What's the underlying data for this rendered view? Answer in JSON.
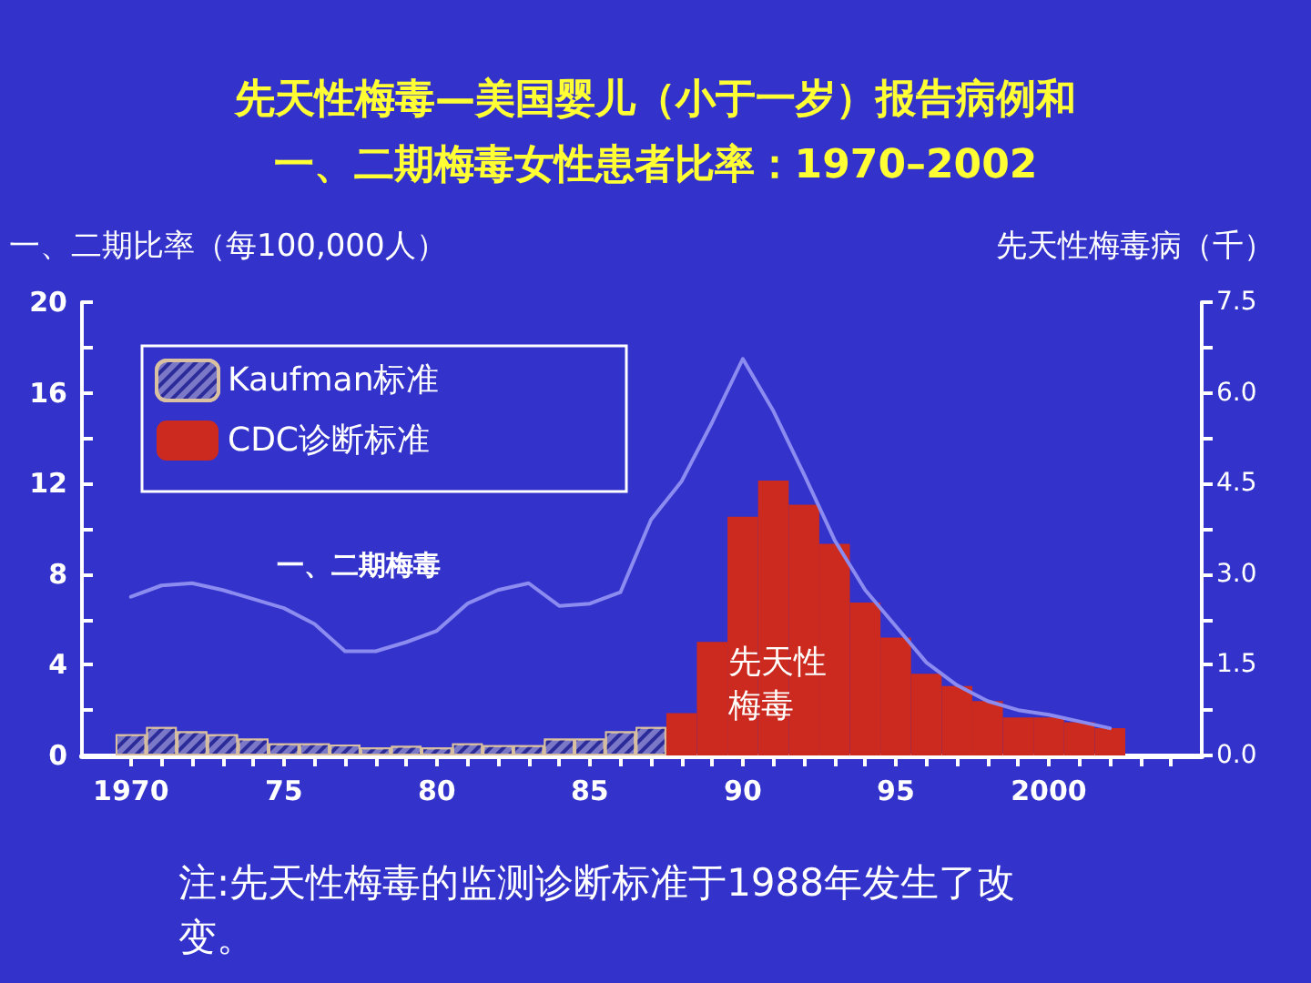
{
  "chart_data": {
    "type": "bar",
    "title": "先天性梅毒—美国婴儿（小于一岁）报告病例和一、二期梅毒女性患者比率：1970–2002",
    "ylabel": "一、二期比率（每100,000人）",
    "y2label": "先天性梅毒病（千）",
    "annotations": [
      "先天性梅毒",
      "注:先天性梅毒的监测诊断标准于1988年发生了改变。"
    ],
    "xlim": [
      1968.4,
      2005
    ],
    "xticks": [
      {
        "value": 1970,
        "label": "1970"
      },
      {
        "value": 1971,
        "label": null
      },
      {
        "value": 1972,
        "label": null
      },
      {
        "value": 1973,
        "label": null
      },
      {
        "value": 1974,
        "label": null
      },
      {
        "value": 1975,
        "label": "75"
      },
      {
        "value": 1976,
        "label": null
      },
      {
        "value": 1977,
        "label": null
      },
      {
        "value": 1978,
        "label": null
      },
      {
        "value": 1979,
        "label": null
      },
      {
        "value": 1980,
        "label": "80"
      },
      {
        "value": 1981,
        "label": null
      },
      {
        "value": 1982,
        "label": null
      },
      {
        "value": 1983,
        "label": null
      },
      {
        "value": 1984,
        "label": null
      },
      {
        "value": 1985,
        "label": "85"
      },
      {
        "value": 1986,
        "label": null
      },
      {
        "value": 1987,
        "label": null
      },
      {
        "value": 1988,
        "label": null
      },
      {
        "value": 1989,
        "label": null
      },
      {
        "value": 1990,
        "label": "90"
      },
      {
        "value": 1991,
        "label": null
      },
      {
        "value": 1992,
        "label": null
      },
      {
        "value": 1993,
        "label": null
      },
      {
        "value": 1994,
        "label": null
      },
      {
        "value": 1995,
        "label": "95"
      },
      {
        "value": 1996,
        "label": null
      },
      {
        "value": 1997,
        "label": null
      },
      {
        "value": 1998,
        "label": null
      },
      {
        "value": 1999,
        "label": null
      },
      {
        "value": 2000,
        "label": "2000"
      },
      {
        "value": 2001,
        "label": null
      },
      {
        "value": 2002,
        "label": null
      },
      {
        "value": 2003,
        "label": null
      },
      {
        "value": 2004,
        "label": null
      }
    ],
    "ylim": [
      0,
      20
    ],
    "yticks": [
      0,
      {
        "value": 2,
        "label": null
      },
      4,
      {
        "value": 6,
        "label": null
      },
      8,
      {
        "value": 10,
        "label": null
      },
      12,
      {
        "value": 14,
        "label": null
      },
      16,
      {
        "value": 18,
        "label": null
      },
      20
    ],
    "y2lim": [
      0,
      7.5
    ],
    "y2ticks": [
      {
        "value": 0,
        "label": "0.0"
      },
      {
        "value": 0.75,
        "label": null
      },
      {
        "value": 1.5,
        "label": "1.5"
      },
      {
        "value": 2.25,
        "label": null
      },
      {
        "value": 3,
        "label": "3.0"
      },
      {
        "value": 3.75,
        "label": null
      },
      {
        "value": 4.5,
        "label": "4.5"
      },
      {
        "value": 5.25,
        "label": null
      },
      {
        "value": 6,
        "label": "6.0"
      },
      {
        "value": 6.75,
        "label": null
      },
      {
        "value": 7.5,
        "label": "7.5"
      }
    ],
    "grid": false,
    "legend": "top left",
    "marker": "none",
    "series": [
      {
        "name": "Kaufman标准",
        "axis": "y2",
        "color": "#7b78c8",
        "x": [
          1970,
          1971,
          1972,
          1973,
          1974,
          1975,
          1976,
          1977,
          1978,
          1979,
          1980,
          1981,
          1982,
          1983,
          1984,
          1985,
          1986,
          1987
        ],
        "values": [
          0.35,
          0.47,
          0.4,
          0.35,
          0.28,
          0.2,
          0.2,
          0.18,
          0.13,
          0.16,
          0.13,
          0.2,
          0.17,
          0.17,
          0.28,
          0.28,
          0.4,
          0.47
        ]
      },
      {
        "name": "CDC诊断标准",
        "axis": "y2",
        "color": "#cc2a1e",
        "x": [
          1988,
          1989,
          1990,
          1991,
          1992,
          1993,
          1994,
          1995,
          1996,
          1997,
          1998,
          1999,
          2000,
          2001,
          2002
        ],
        "values": [
          0.7,
          1.88,
          3.95,
          4.55,
          4.15,
          3.5,
          2.53,
          1.95,
          1.35,
          1.15,
          0.9,
          0.63,
          0.63,
          0.55,
          0.45
        ]
      },
      {
        "name": "一、二期梅毒",
        "type": "line",
        "color": "#8c8cf0",
        "x": [
          1970,
          1971,
          1972,
          1973,
          1974,
          1975,
          1976,
          1977,
          1978,
          1979,
          1980,
          1981,
          1982,
          1983,
          1984,
          1985,
          1986,
          1987,
          1988,
          1989,
          1990,
          1991,
          1992,
          1993,
          1994,
          1995,
          1996,
          1997,
          1998,
          1999,
          2000,
          2001,
          2002
        ],
        "values": [
          7.0,
          7.5,
          7.6,
          7.3,
          6.9,
          6.5,
          5.8,
          4.6,
          4.6,
          5.0,
          5.5,
          6.7,
          7.3,
          7.6,
          6.6,
          6.7,
          7.2,
          10.4,
          12.1,
          14.7,
          17.5,
          15.2,
          12.4,
          9.5,
          7.3,
          5.7,
          4.1,
          3.1,
          2.4,
          2.0,
          1.8,
          1.5,
          1.2
        ]
      }
    ]
  }
}
